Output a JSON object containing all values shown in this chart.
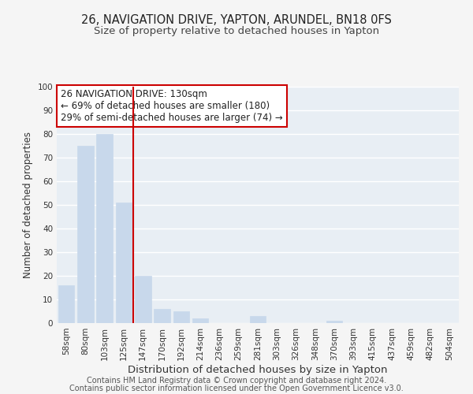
{
  "title": "26, NAVIGATION DRIVE, YAPTON, ARUNDEL, BN18 0FS",
  "subtitle": "Size of property relative to detached houses in Yapton",
  "xlabel": "Distribution of detached houses by size in Yapton",
  "ylabel": "Number of detached properties",
  "bar_labels": [
    "58sqm",
    "80sqm",
    "103sqm",
    "125sqm",
    "147sqm",
    "170sqm",
    "192sqm",
    "214sqm",
    "236sqm",
    "259sqm",
    "281sqm",
    "303sqm",
    "326sqm",
    "348sqm",
    "370sqm",
    "393sqm",
    "415sqm",
    "437sqm",
    "459sqm",
    "482sqm",
    "504sqm"
  ],
  "bar_values": [
    16,
    75,
    80,
    51,
    20,
    6,
    5,
    2,
    0,
    0,
    3,
    0,
    0,
    0,
    1,
    0,
    0,
    0,
    0,
    0,
    0
  ],
  "bar_color": "#c8d8eb",
  "bar_edge_color": "#c8d8eb",
  "vline_x": 3.5,
  "vline_color": "#cc0000",
  "annotation_title": "26 NAVIGATION DRIVE: 130sqm",
  "annotation_line1": "← 69% of detached houses are smaller (180)",
  "annotation_line2": "29% of semi-detached houses are larger (74) →",
  "annotation_box_facecolor": "#ffffff",
  "annotation_box_edge": "#cc0000",
  "ylim": [
    0,
    100
  ],
  "yticks": [
    0,
    10,
    20,
    30,
    40,
    50,
    60,
    70,
    80,
    90,
    100
  ],
  "footer1": "Contains HM Land Registry data © Crown copyright and database right 2024.",
  "footer2": "Contains public sector information licensed under the Open Government Licence v3.0.",
  "title_fontsize": 10.5,
  "subtitle_fontsize": 9.5,
  "xlabel_fontsize": 9.5,
  "ylabel_fontsize": 8.5,
  "tick_fontsize": 7.5,
  "annotation_fontsize": 8.5,
  "footer_fontsize": 7,
  "bg_color": "#f5f5f5",
  "plot_bg_color": "#e8eef4",
  "grid_color": "#ffffff",
  "text_color": "#333333"
}
